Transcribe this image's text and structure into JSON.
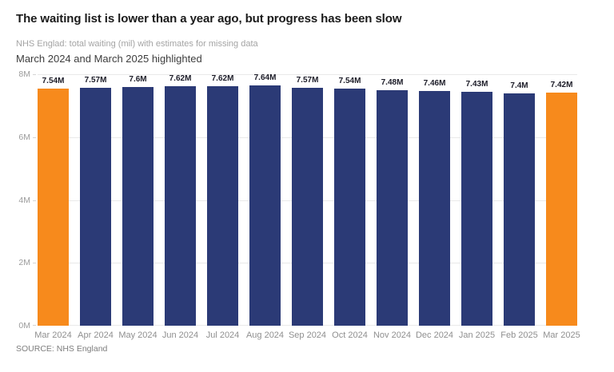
{
  "header": {
    "title": "The waiting list is lower than a year ago, but progress has been slow",
    "subtitle": "NHS Englad: total waiting (mil) with estimates for missing data",
    "note": "March 2024 and March 2025 highlighted"
  },
  "footer": {
    "source": "SOURCE: NHS England"
  },
  "chart_data": {
    "type": "bar",
    "title": "The waiting list is lower than a year ago, but progress has been slow",
    "subtitle": "NHS Englad: total waiting (mil) with estimates for missing data",
    "annotation": "March 2024 and March 2025 highlighted",
    "categories": [
      "Mar 2024",
      "Apr 2024",
      "May 2024",
      "Jun 2024",
      "Jul 2024",
      "Aug 2024",
      "Sep 2024",
      "Oct 2024",
      "Nov 2024",
      "Dec 2024",
      "Jan 2025",
      "Feb 2025",
      "Mar 2025"
    ],
    "values": [
      7.54,
      7.57,
      7.6,
      7.62,
      7.62,
      7.64,
      7.57,
      7.54,
      7.48,
      7.46,
      7.43,
      7.4,
      7.42
    ],
    "value_labels": [
      "7.54M",
      "7.57M",
      "7.6M",
      "7.62M",
      "7.62M",
      "7.64M",
      "7.57M",
      "7.54M",
      "7.48M",
      "7.46M",
      "7.43M",
      "7.4M",
      "7.42M"
    ],
    "highlighted_indices": [
      0,
      12
    ],
    "xlabel": "",
    "ylabel": "",
    "ylim": [
      0,
      8
    ],
    "yticks": [
      "8M",
      "6M",
      "4M",
      "2M",
      "0M"
    ],
    "grid": "horizontal",
    "legend": "none",
    "colors": {
      "bar": "#2b3a76",
      "highlight": "#f78a1c"
    },
    "source": "SOURCE: NHS England"
  }
}
